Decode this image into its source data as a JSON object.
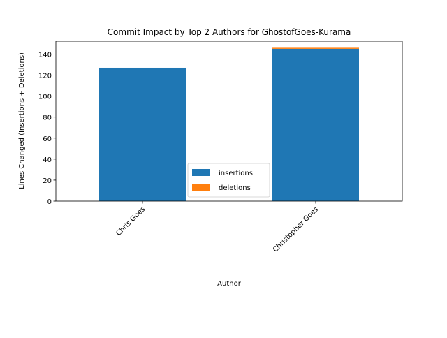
{
  "chart_data": {
    "type": "bar",
    "stacked": true,
    "title": "Commit Impact by Top 2 Authors for GhostofGoes-Kurama",
    "xlabel": "Author",
    "ylabel": "Lines Changed (Insertions + Deletions)",
    "categories": [
      "Chris Goes",
      "Christopher Goes"
    ],
    "series": [
      {
        "name": "insertions",
        "values": [
          127,
          145
        ],
        "color": "#1f77b4"
      },
      {
        "name": "deletions",
        "values": [
          0,
          1
        ],
        "color": "#ff7f0e"
      }
    ],
    "ylim": [
      0,
      152.25
    ],
    "yticks": [
      0,
      20,
      40,
      60,
      80,
      100,
      120,
      140
    ],
    "legend_position": "lower center",
    "grid": false
  }
}
